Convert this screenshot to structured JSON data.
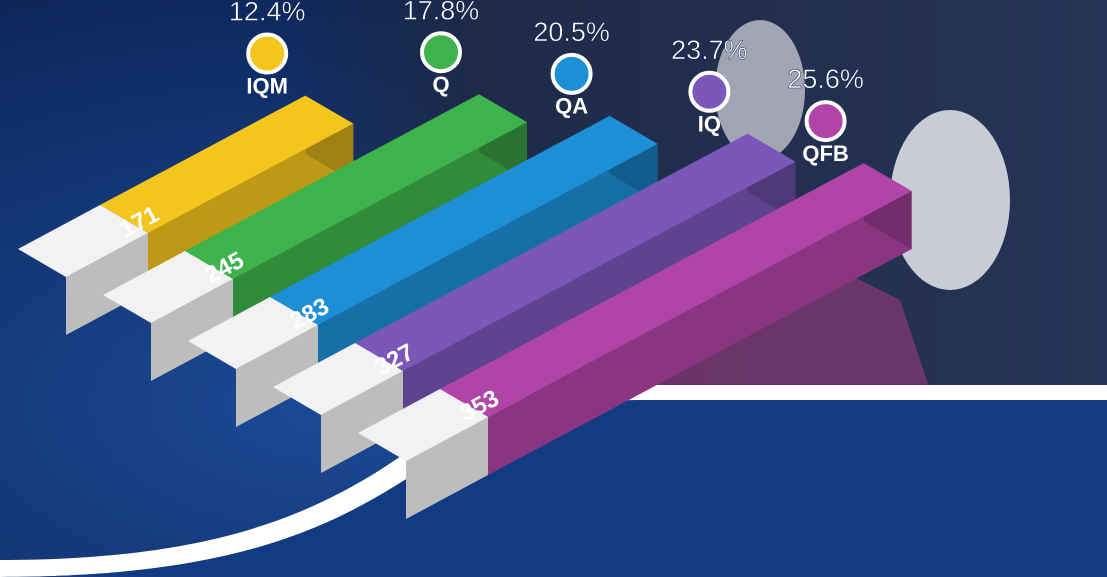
{
  "chart_data": {
    "type": "bar3d",
    "categories": [
      "IQM",
      "Q",
      "QA",
      "IQ",
      "QFB"
    ],
    "values": [
      171,
      245,
      283,
      327,
      353
    ],
    "percent_values": [
      12.4,
      17.8,
      20.5,
      23.7,
      25.6
    ],
    "percent_labels": [
      "12.4%",
      "17.8%",
      "20.5%",
      "23.7%",
      "25.6%"
    ],
    "colors": [
      "#f4c51c",
      "#3eb24b",
      "#1d8fd6",
      "#7a57b8",
      "#b044a7"
    ]
  }
}
